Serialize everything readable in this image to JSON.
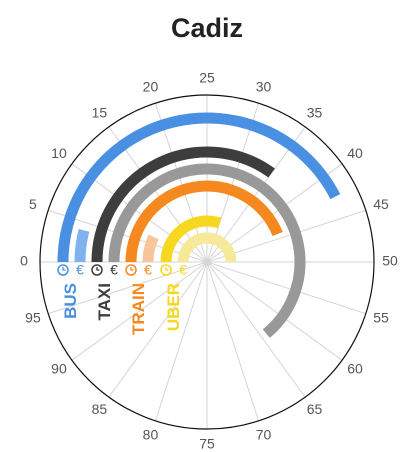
{
  "chart_data": {
    "type": "radial_bar",
    "title": "Cadiz",
    "categories": [
      "BUS",
      "TAXI",
      "TRAIN",
      "UBER"
    ],
    "category_colors": [
      "#4a90e2",
      "#3d3d3d",
      "#f5891f",
      "#f5d81f"
    ],
    "series": [
      {
        "colors": [
          "#4a90e2",
          "#3d3d3d",
          "#f5891f",
          "#f5d81f"
        ],
        "values": [
          42.5,
          35,
          44,
          30
        ]
      },
      {
        "label": "€",
        "colors": [
          "#7fb2ee",
          "#999999",
          "#f7c49b",
          "#f7e99a"
        ],
        "values": [
          4,
          64,
          7,
          50
        ]
      }
    ],
    "xlim": [
      0,
      100
    ],
    "xticks": [
      0,
      5,
      10,
      15,
      20,
      25,
      30,
      35,
      40,
      45,
      50,
      55,
      60,
      65,
      70,
      75,
      80,
      85,
      90,
      95
    ],
    "grid": true
  }
}
